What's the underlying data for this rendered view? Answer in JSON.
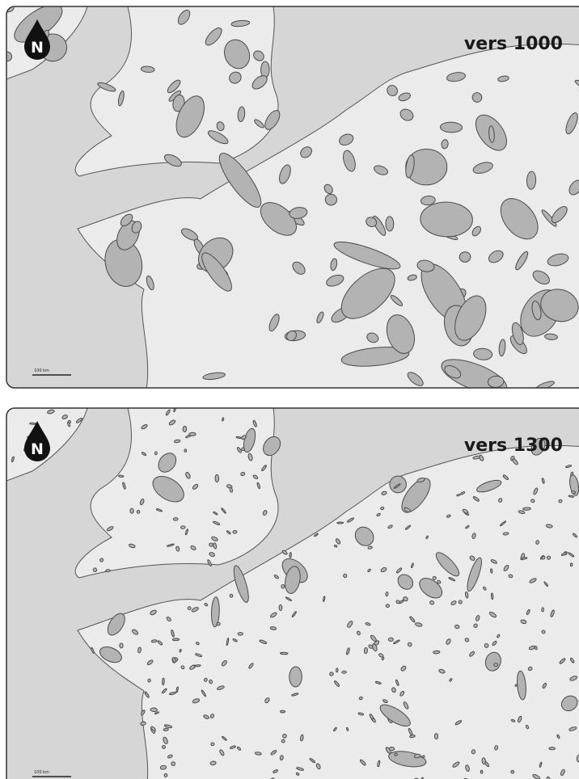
{
  "panels": [
    {
      "title": "vers 1000",
      "north": "N",
      "scale": "100 km"
    },
    {
      "title": "vers 1300",
      "north": "N",
      "scale": "100 km"
    }
  ]
}
